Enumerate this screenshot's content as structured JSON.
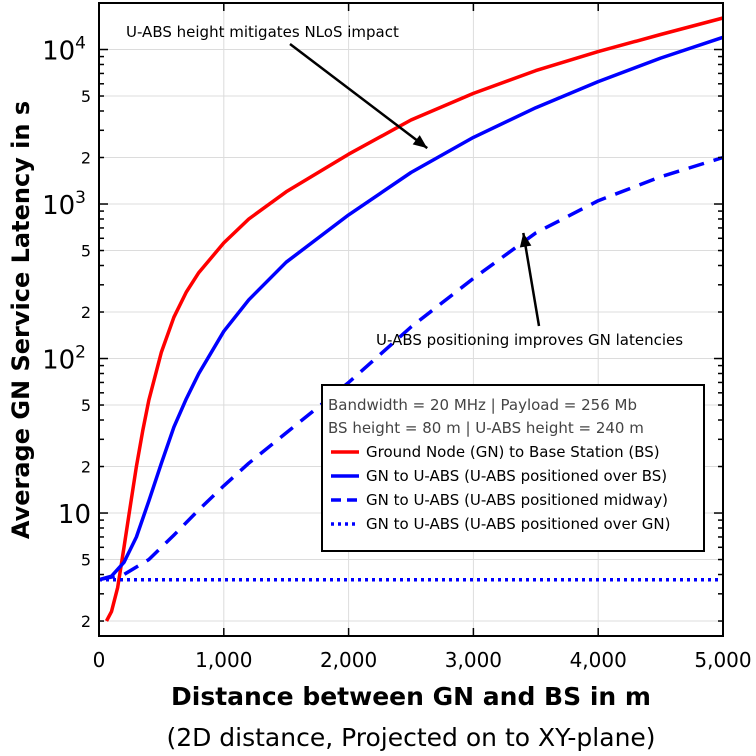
{
  "chart_data": {
    "type": "line",
    "xlabel": "Distance between GN and BS in m",
    "xlabel_sub": "(2D distance, Projected on to XY-plane)",
    "ylabel": "Average GN Service Latency in s",
    "xlim": [
      0,
      5000
    ],
    "ylim": [
      1.6,
      20000
    ],
    "yscale": "log",
    "grid": true,
    "x_ticks": [
      0,
      1000,
      2000,
      3000,
      4000,
      5000
    ],
    "x_tick_labels": [
      "0",
      "1,000",
      "2,000",
      "3,000",
      "4,000",
      "5,000"
    ],
    "y_major_ticks": [
      {
        "value": 10,
        "base": "10",
        "exp": ""
      },
      {
        "value": 100,
        "base": "10",
        "exp": "2"
      },
      {
        "value": 1000,
        "base": "10",
        "exp": "3"
      },
      {
        "value": 10000,
        "base": "10",
        "exp": "4"
      }
    ],
    "y_minor_ticks": [
      {
        "value": 2,
        "label": "2"
      },
      {
        "value": 5,
        "label": "5"
      },
      {
        "value": 20,
        "label": "2"
      },
      {
        "value": 50,
        "label": "5"
      },
      {
        "value": 200,
        "label": "2"
      },
      {
        "value": 500,
        "label": "5"
      },
      {
        "value": 2000,
        "label": "2"
      },
      {
        "value": 5000,
        "label": "5"
      }
    ],
    "legend": {
      "position": "lower-right",
      "info_lines": [
        "Bandwidth = 20 MHz | Payload = 256 Mb",
        "BS height = 80 m | U-ABS height = 240 m"
      ]
    },
    "series": [
      {
        "name": "Ground Node (GN) to Base Station (BS)",
        "color": "#ff0000",
        "style": "solid",
        "x": [
          60,
          100,
          150,
          200,
          250,
          300,
          350,
          400,
          500,
          600,
          700,
          800,
          1000,
          1200,
          1500,
          2000,
          2500,
          3000,
          3500,
          4000,
          4500,
          5000
        ],
        "y": [
          2.0,
          2.3,
          3.3,
          6.0,
          11,
          20,
          34,
          54,
          110,
          185,
          270,
          360,
          560,
          800,
          1200,
          2100,
          3500,
          5200,
          7300,
          9700,
          12500,
          16000
        ]
      },
      {
        "name": "GN to U-ABS (U-ABS positioned over BS)",
        "color": "#0000ff",
        "style": "solid",
        "x": [
          0,
          100,
          200,
          300,
          400,
          500,
          600,
          700,
          800,
          1000,
          1200,
          1500,
          2000,
          2500,
          3000,
          3500,
          4000,
          4500,
          5000
        ],
        "y": [
          3.7,
          3.9,
          4.8,
          7.0,
          12,
          21,
          36,
          55,
          80,
          150,
          240,
          420,
          850,
          1600,
          2700,
          4200,
          6200,
          8800,
          12000
        ]
      },
      {
        "name": "GN to U-ABS (U-ABS positioned midway)",
        "color": "#0000ff",
        "style": "dashed",
        "x": [
          0,
          200,
          400,
          600,
          800,
          1000,
          1200,
          1500,
          2000,
          2500,
          3000,
          3500,
          4000,
          4500,
          5000
        ],
        "y": [
          3.7,
          4.0,
          5.0,
          7.2,
          10.5,
          15,
          21,
          33,
          70,
          160,
          330,
          650,
          1050,
          1500,
          2000
        ]
      },
      {
        "name": "GN to U-ABS (U-ABS positioned over GN)",
        "color": "#0000ff",
        "style": "dotted",
        "x": [
          0,
          5000
        ],
        "y": [
          3.7,
          3.7
        ]
      }
    ],
    "annotations": [
      {
        "text": "U-ABS height mitigates NLoS impact",
        "arrow_to": [
          2630,
          2300
        ]
      },
      {
        "text": "U-ABS positioning improves GN latencies",
        "arrow_to": [
          3400,
          650
        ]
      }
    ]
  }
}
